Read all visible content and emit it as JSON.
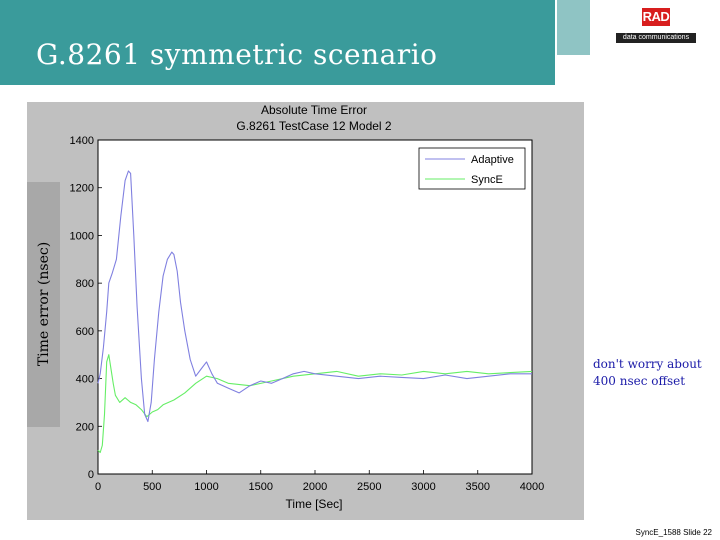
{
  "slide": {
    "title": "G.8261 symmetric scenario",
    "logo_text": "RAD",
    "logo_subtext": "data communications",
    "y_axis_label": "Time error (nsec)",
    "note_line1": "don't worry about",
    "note_line2": "400 nsec offset",
    "footer": "SyncE_1588 Slide 22"
  },
  "colors": {
    "header": "#3a9b9b",
    "adaptive": "#8080e0",
    "synce": "#66ee66",
    "note": "#1a1aa8"
  },
  "chart_data": {
    "type": "line",
    "title": "Absolute Time Error",
    "subtitle": "G.8261 TestCase 12 Model 2",
    "xlabel": "Time [Sec]",
    "ylabel": "",
    "xlim": [
      0,
      4000
    ],
    "ylim": [
      0,
      1400
    ],
    "xticks": [
      0,
      500,
      1000,
      1500,
      2000,
      2500,
      3000,
      3500,
      4000
    ],
    "yticks": [
      0,
      200,
      400,
      600,
      800,
      1000,
      1200,
      1400
    ],
    "grid": false,
    "legend_position": "top-right",
    "series": [
      {
        "name": "Adaptive",
        "color": "#8080e0",
        "x": [
          0,
          20,
          50,
          80,
          100,
          130,
          170,
          210,
          250,
          280,
          300,
          330,
          360,
          400,
          430,
          460,
          490,
          520,
          560,
          600,
          640,
          680,
          700,
          730,
          760,
          800,
          850,
          900,
          950,
          1000,
          1050,
          1100,
          1200,
          1300,
          1400,
          1500,
          1600,
          1700,
          1800,
          1900,
          2000,
          2200,
          2400,
          2600,
          2800,
          3000,
          3200,
          3400,
          3600,
          3800,
          4000
        ],
        "y": [
          380,
          420,
          530,
          680,
          800,
          840,
          900,
          1080,
          1230,
          1270,
          1260,
          1000,
          700,
          400,
          250,
          220,
          300,
          480,
          680,
          830,
          900,
          930,
          920,
          850,
          720,
          600,
          480,
          410,
          440,
          470,
          420,
          380,
          360,
          340,
          370,
          390,
          380,
          400,
          420,
          430,
          420,
          410,
          400,
          410,
          405,
          400,
          415,
          400,
          410,
          420,
          420
        ]
      },
      {
        "name": "SyncE",
        "color": "#66ee66",
        "x": [
          0,
          20,
          40,
          60,
          80,
          100,
          120,
          140,
          160,
          200,
          250,
          300,
          350,
          400,
          450,
          500,
          550,
          600,
          700,
          800,
          900,
          1000,
          1100,
          1200,
          1400,
          1600,
          1800,
          2000,
          2200,
          2400,
          2600,
          2800,
          3000,
          3200,
          3400,
          3600,
          3800,
          4000
        ],
        "y": [
          100,
          90,
          120,
          250,
          470,
          500,
          440,
          380,
          330,
          300,
          320,
          300,
          290,
          270,
          240,
          260,
          270,
          290,
          310,
          340,
          380,
          410,
          400,
          380,
          370,
          390,
          410,
          420,
          430,
          410,
          420,
          415,
          430,
          420,
          430,
          420,
          425,
          430
        ]
      }
    ]
  }
}
